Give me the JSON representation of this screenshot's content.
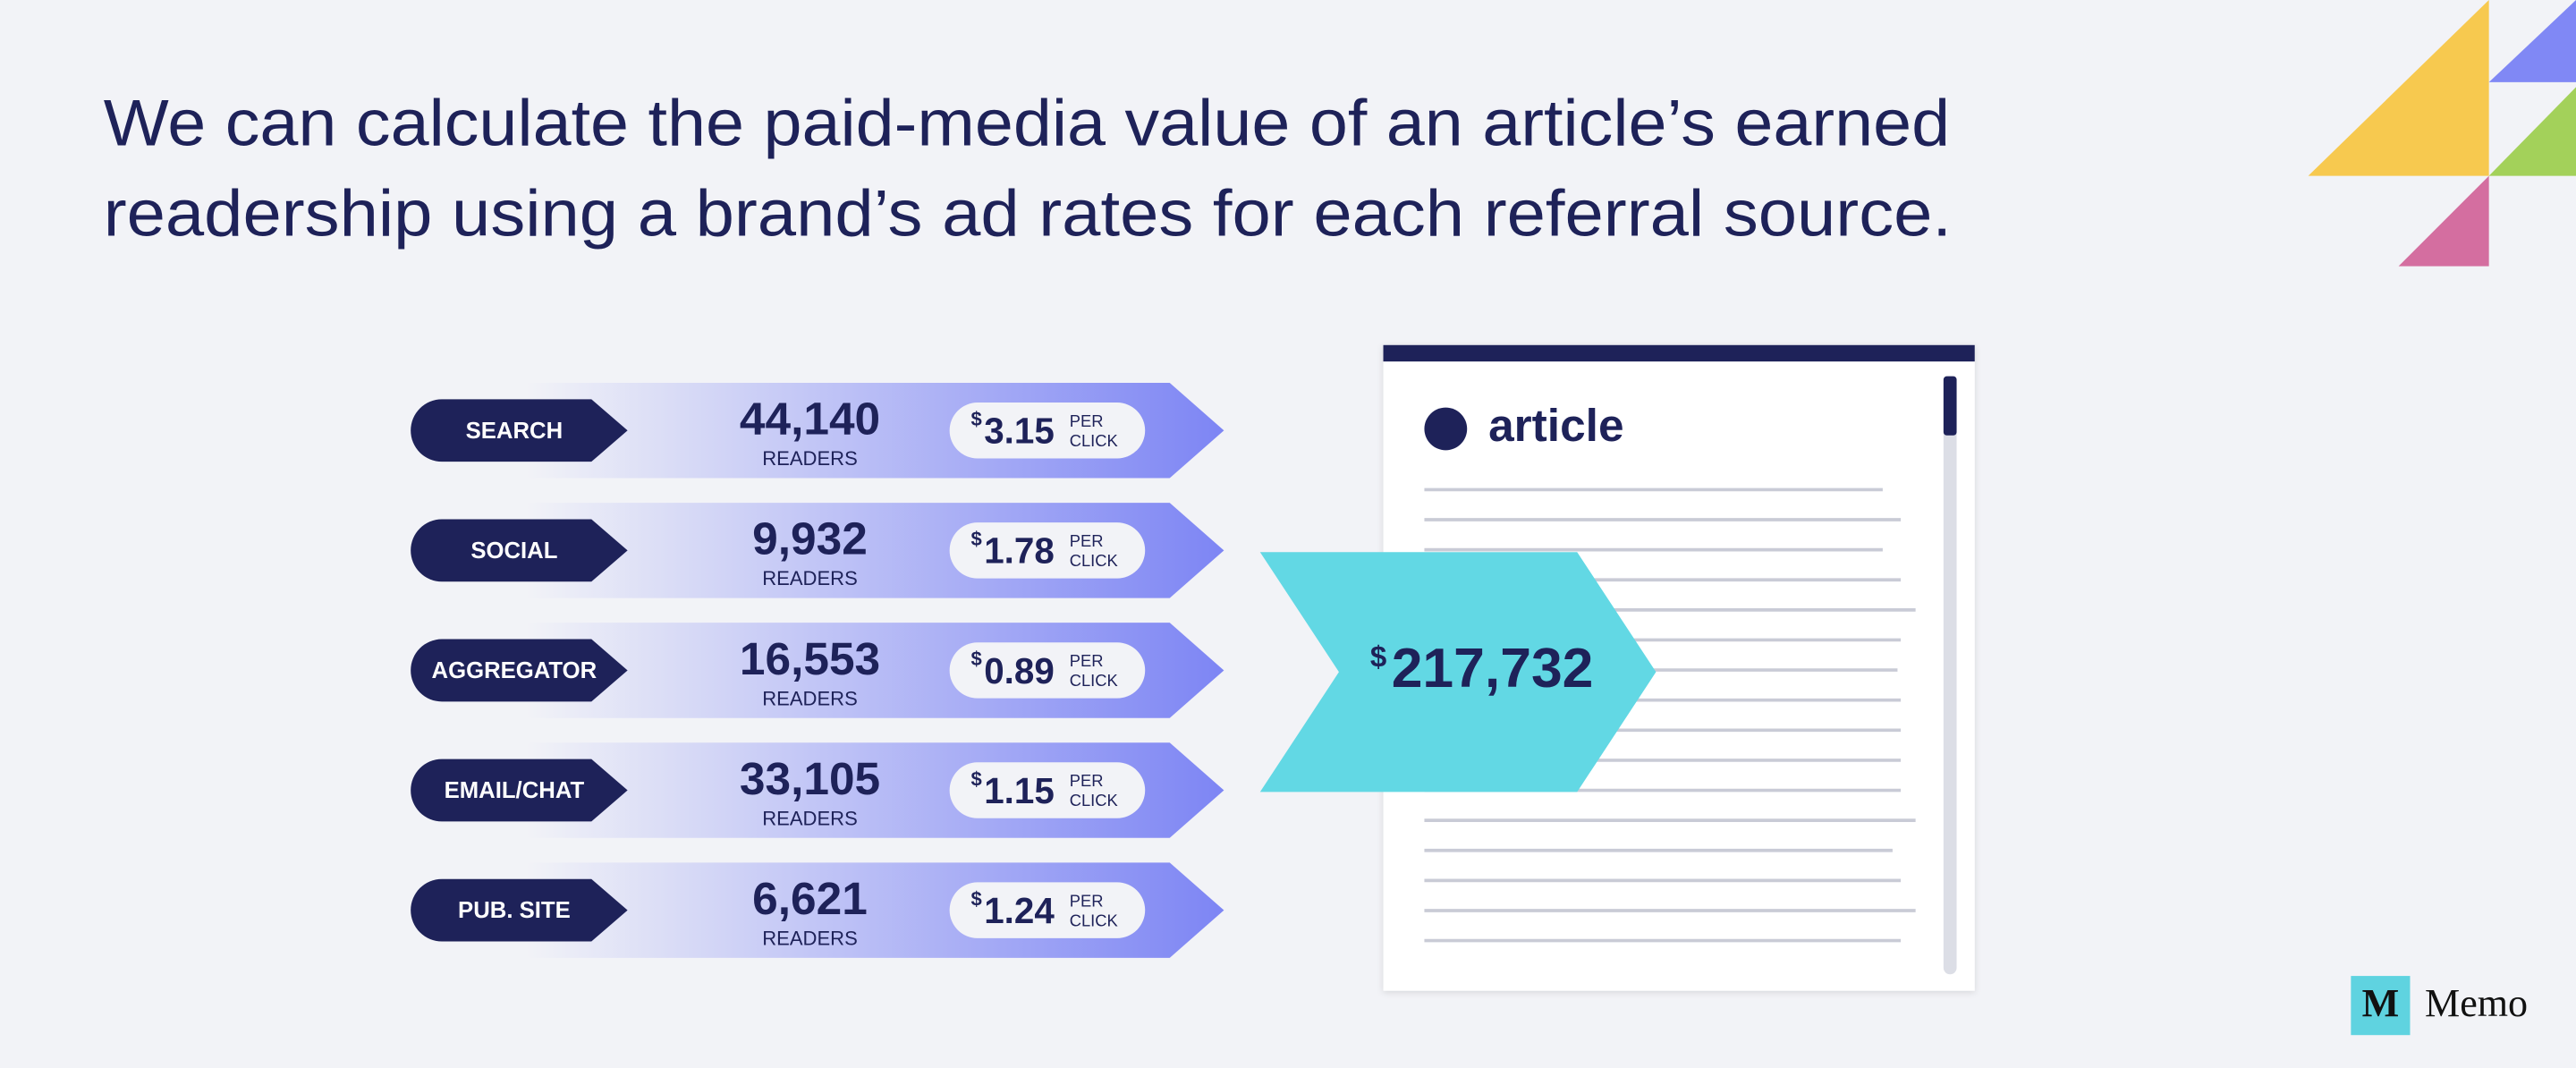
{
  "header": {
    "title_lines": [
      "We can calculate the paid-media value of an article’s earned",
      "readership using a brand’s ad rates for each referral source."
    ]
  },
  "sources": [
    {
      "label": "SEARCH",
      "readers": "44,140",
      "readers_label": "READERS",
      "currency": "$",
      "rate": "3.15",
      "unit_top": "PER",
      "unit_bottom": "CLICK"
    },
    {
      "label": "SOCIAL",
      "readers": "9,932",
      "readers_label": "READERS",
      "currency": "$",
      "rate": "1.78",
      "unit_top": "PER",
      "unit_bottom": "CLICK"
    },
    {
      "label": "AGGREGATOR",
      "readers": "16,553",
      "readers_label": "READERS",
      "currency": "$",
      "rate": "0.89",
      "unit_top": "PER",
      "unit_bottom": "CLICK"
    },
    {
      "label": "EMAIL/CHAT",
      "readers": "33,105",
      "readers_label": "READERS",
      "currency": "$",
      "rate": "1.15",
      "unit_top": "PER",
      "unit_bottom": "CLICK"
    },
    {
      "label": "PUB. SITE",
      "readers": "6,621",
      "readers_label": "READERS",
      "currency": "$",
      "rate": "1.24",
      "unit_top": "PER",
      "unit_bottom": "CLICK"
    }
  ],
  "total": {
    "currency": "$",
    "amount": "217,732"
  },
  "article": {
    "label": "article"
  },
  "brand": {
    "logo": "M",
    "name": "Memo"
  }
}
